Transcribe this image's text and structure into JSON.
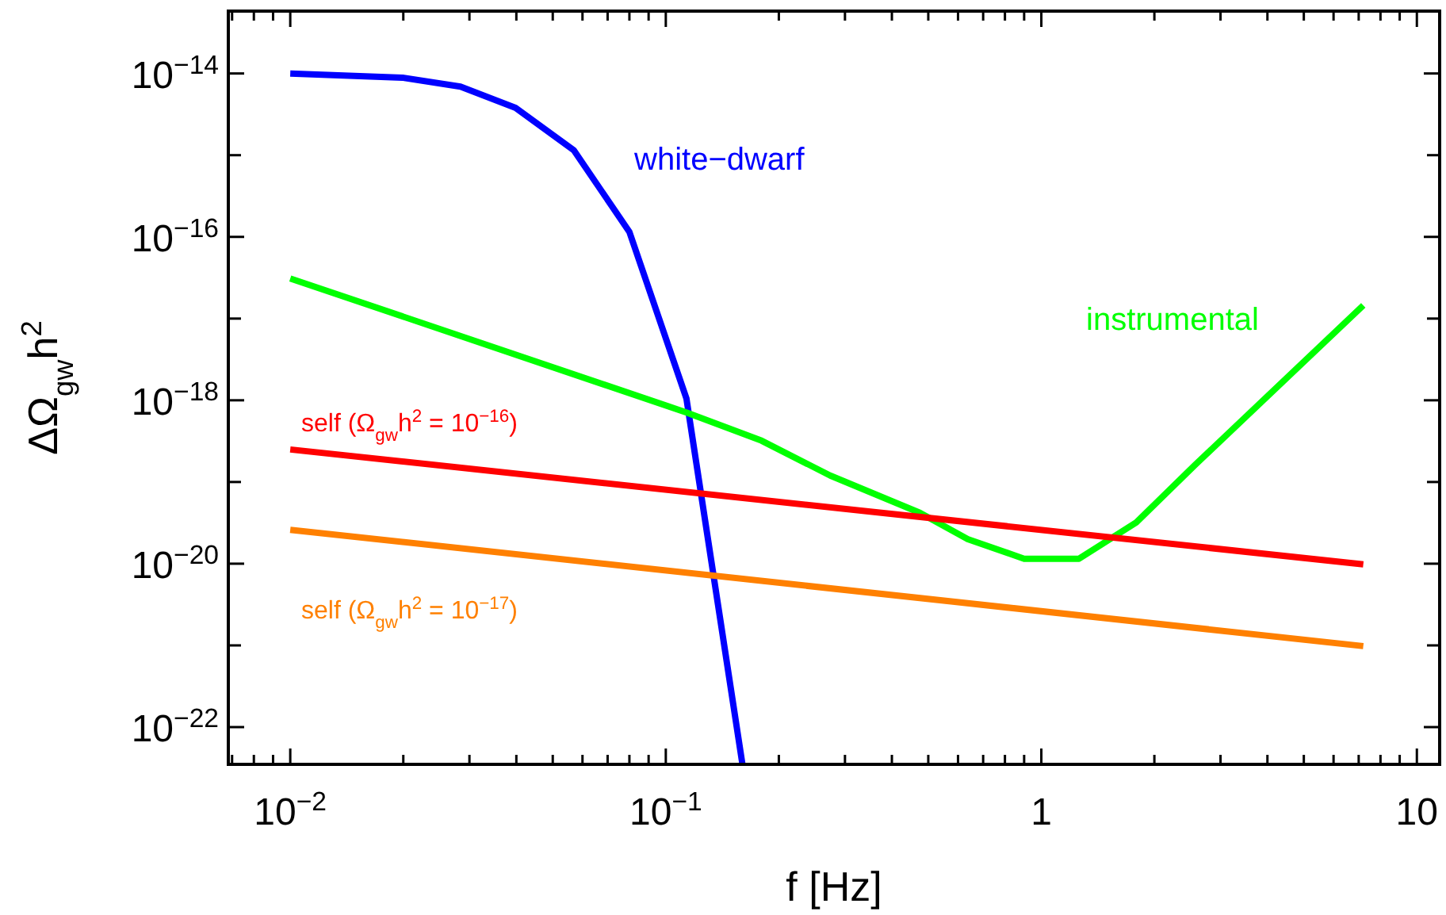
{
  "chart_data": {
    "type": "line",
    "xlabel": "f [Hz]",
    "ylabel": "ΔΩ$_{gw}$h$^{2}$",
    "log": "xy",
    "grid": false,
    "marker": "none",
    "line_style": "solid",
    "xlim": [
      0.00684,
      11.5
    ],
    "ylim": [
      3.5e-23,
      5.8e-14
    ],
    "xticks": [
      {
        "value": 0.007,
        "label": null
      },
      {
        "value": 0.008,
        "label": null
      },
      {
        "value": 0.009,
        "label": null
      },
      {
        "value": 0.01,
        "label": "10$^{−2}$"
      },
      {
        "value": 0.02,
        "label": null
      },
      {
        "value": 0.03,
        "label": null
      },
      {
        "value": 0.04,
        "label": null
      },
      {
        "value": 0.05,
        "label": null
      },
      {
        "value": 0.06,
        "label": null
      },
      {
        "value": 0.07,
        "label": null
      },
      {
        "value": 0.08,
        "label": null
      },
      {
        "value": 0.09,
        "label": null
      },
      {
        "value": 0.1,
        "label": "10$^{−1}$"
      },
      {
        "value": 0.2,
        "label": null
      },
      {
        "value": 0.3,
        "label": null
      },
      {
        "value": 0.4,
        "label": null
      },
      {
        "value": 0.5,
        "label": null
      },
      {
        "value": 0.6,
        "label": null
      },
      {
        "value": 0.7,
        "label": null
      },
      {
        "value": 0.8,
        "label": null
      },
      {
        "value": 0.9,
        "label": null
      },
      1,
      {
        "value": 2,
        "label": null
      },
      {
        "value": 3,
        "label": null
      },
      {
        "value": 4,
        "label": null
      },
      {
        "value": 5,
        "label": null
      },
      {
        "value": 6,
        "label": null
      },
      {
        "value": 7,
        "label": null
      },
      {
        "value": 8,
        "label": null
      },
      {
        "value": 9,
        "label": null
      },
      10
    ],
    "yticks": [
      {
        "value": 1e-22,
        "label": "10$^{−22}$"
      },
      {
        "value": 1e-21,
        "label": null
      },
      {
        "value": 1e-20,
        "label": "10$^{−20}$"
      },
      {
        "value": 1e-19,
        "label": null
      },
      {
        "value": 1e-18,
        "label": "10$^{−18}$"
      },
      {
        "value": 1e-17,
        "label": null
      },
      {
        "value": 1e-16,
        "label": "10$^{−16}$"
      },
      {
        "value": 1e-15,
        "label": null
      },
      {
        "value": 1e-14,
        "label": "10$^{−14}$"
      }
    ],
    "series": [
      {
        "name": "white−dwarf",
        "color": "#0000ff",
        "x": [
          0.01,
          0.0199,
          0.0284,
          0.0398,
          0.0569,
          0.08,
          0.1135,
          0.16
        ],
        "values": [
          1e-14,
          8.9e-15,
          6.9e-15,
          3.8e-15,
          1.15e-15,
          1.15e-16,
          1.05e-18,
          3.5e-23
        ]
      },
      {
        "name": "instrumental",
        "color": "#00ff00",
        "x": [
          0.01,
          0.1135,
          0.18,
          0.274,
          0.475,
          0.637,
          0.9,
          1.26,
          1.79,
          2.56,
          7.2
        ],
        "values": [
          3.1e-17,
          7.1e-19,
          3.2e-19,
          1.2e-19,
          4.2e-20,
          2e-20,
          1.15e-20,
          1.15e-20,
          3.2e-20,
          1.6e-19,
          1.45e-17
        ]
      },
      {
        "name": "self (Ω$_{gw}$h$^{2}$ = 10$^{−16}$)",
        "color": "#ff0000",
        "x": [
          0.01,
          7.2
        ],
        "values": [
          2.5e-19,
          9.8e-21
        ]
      },
      {
        "name": "self (Ω$_{gw}$h$^{2}$ = 10$^{−17}$)",
        "color": "#ff8000",
        "x": [
          0.01,
          7.2
        ],
        "values": [
          2.6e-20,
          9.8e-22
        ]
      }
    ]
  }
}
